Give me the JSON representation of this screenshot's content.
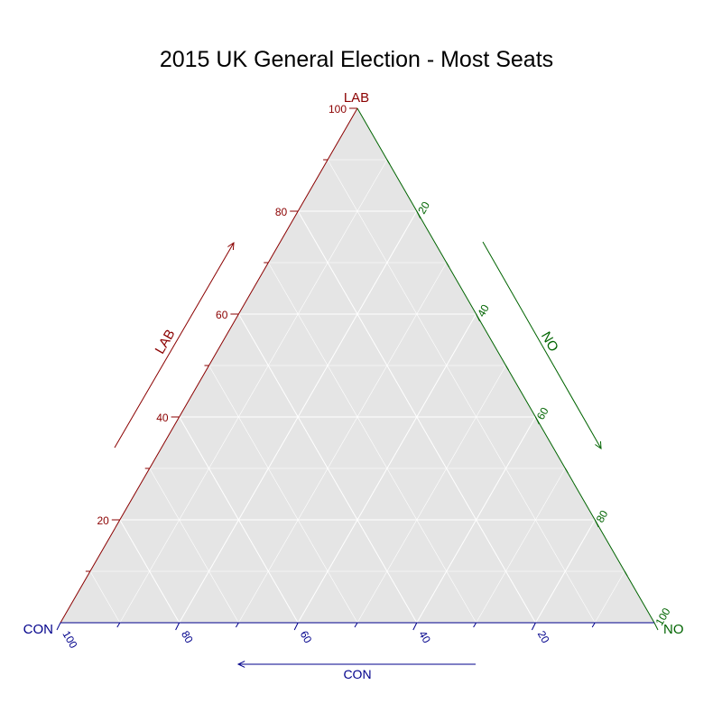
{
  "chart_data": {
    "type": "ternary",
    "title": "2015 UK General Election - Most Seats",
    "axes": {
      "left": {
        "label": "LAB",
        "arrow_label": "LAB",
        "color": "#8b0000",
        "ticks": [
          "20",
          "40",
          "60",
          "80",
          "100"
        ]
      },
      "right": {
        "label": "NO",
        "arrow_label": "NO",
        "color": "#006400",
        "ticks": [
          "20",
          "40",
          "60",
          "80",
          "100"
        ]
      },
      "bottom": {
        "label": "CON",
        "arrow_label": "CON",
        "color": "#00008b",
        "ticks": [
          "100",
          "80",
          "60",
          "40",
          "20"
        ]
      }
    },
    "range": [
      0,
      100
    ],
    "grid": true,
    "background": "#e5e5e5",
    "series": []
  }
}
